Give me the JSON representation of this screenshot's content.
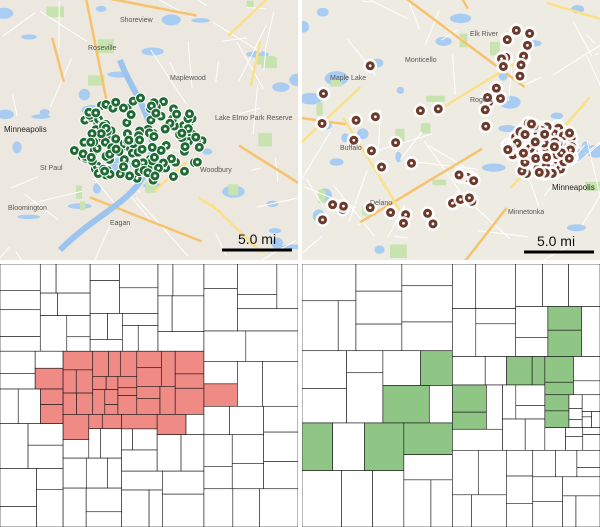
{
  "panels": [
    {
      "labels": [
        "Minneapolis",
        "Roseville",
        "Shoreview",
        "Maplewood",
        "Lake Elmo Park Reserve",
        "Woodbury",
        "St Paul",
        "Bloomington",
        "Eagan"
      ],
      "scale": "5.0 mi"
    },
    {
      "labels": [
        "Elk River",
        "Rogers",
        "Buffalo",
        "Monticello",
        "Maple Lake",
        "Delano",
        "Minnetonka",
        "Minneapolis"
      ],
      "scale": "5.0 mi"
    }
  ]
}
